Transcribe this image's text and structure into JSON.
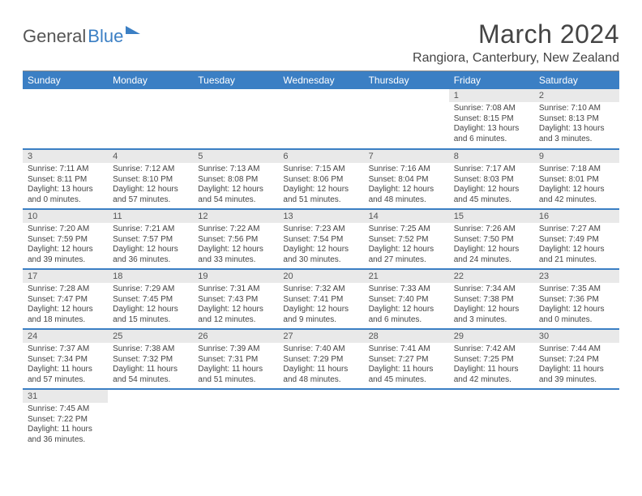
{
  "brand": {
    "a": "General",
    "b": "Blue"
  },
  "title": "March 2024",
  "location": "Rangiora, Canterbury, New Zealand",
  "colors": {
    "accent": "#3b7fc4",
    "daynum_bg": "#e9e9e9",
    "text": "#444444",
    "rule": "#888888"
  },
  "weekdays": [
    "Sunday",
    "Monday",
    "Tuesday",
    "Wednesday",
    "Thursday",
    "Friday",
    "Saturday"
  ],
  "weeks": [
    [
      null,
      null,
      null,
      null,
      null,
      {
        "n": "1",
        "sr": "Sunrise: 7:08 AM",
        "ss": "Sunset: 8:15 PM",
        "dl": "Daylight: 13 hours and 6 minutes."
      },
      {
        "n": "2",
        "sr": "Sunrise: 7:10 AM",
        "ss": "Sunset: 8:13 PM",
        "dl": "Daylight: 13 hours and 3 minutes."
      }
    ],
    [
      {
        "n": "3",
        "sr": "Sunrise: 7:11 AM",
        "ss": "Sunset: 8:11 PM",
        "dl": "Daylight: 13 hours and 0 minutes."
      },
      {
        "n": "4",
        "sr": "Sunrise: 7:12 AM",
        "ss": "Sunset: 8:10 PM",
        "dl": "Daylight: 12 hours and 57 minutes."
      },
      {
        "n": "5",
        "sr": "Sunrise: 7:13 AM",
        "ss": "Sunset: 8:08 PM",
        "dl": "Daylight: 12 hours and 54 minutes."
      },
      {
        "n": "6",
        "sr": "Sunrise: 7:15 AM",
        "ss": "Sunset: 8:06 PM",
        "dl": "Daylight: 12 hours and 51 minutes."
      },
      {
        "n": "7",
        "sr": "Sunrise: 7:16 AM",
        "ss": "Sunset: 8:04 PM",
        "dl": "Daylight: 12 hours and 48 minutes."
      },
      {
        "n": "8",
        "sr": "Sunrise: 7:17 AM",
        "ss": "Sunset: 8:03 PM",
        "dl": "Daylight: 12 hours and 45 minutes."
      },
      {
        "n": "9",
        "sr": "Sunrise: 7:18 AM",
        "ss": "Sunset: 8:01 PM",
        "dl": "Daylight: 12 hours and 42 minutes."
      }
    ],
    [
      {
        "n": "10",
        "sr": "Sunrise: 7:20 AM",
        "ss": "Sunset: 7:59 PM",
        "dl": "Daylight: 12 hours and 39 minutes."
      },
      {
        "n": "11",
        "sr": "Sunrise: 7:21 AM",
        "ss": "Sunset: 7:57 PM",
        "dl": "Daylight: 12 hours and 36 minutes."
      },
      {
        "n": "12",
        "sr": "Sunrise: 7:22 AM",
        "ss": "Sunset: 7:56 PM",
        "dl": "Daylight: 12 hours and 33 minutes."
      },
      {
        "n": "13",
        "sr": "Sunrise: 7:23 AM",
        "ss": "Sunset: 7:54 PM",
        "dl": "Daylight: 12 hours and 30 minutes."
      },
      {
        "n": "14",
        "sr": "Sunrise: 7:25 AM",
        "ss": "Sunset: 7:52 PM",
        "dl": "Daylight: 12 hours and 27 minutes."
      },
      {
        "n": "15",
        "sr": "Sunrise: 7:26 AM",
        "ss": "Sunset: 7:50 PM",
        "dl": "Daylight: 12 hours and 24 minutes."
      },
      {
        "n": "16",
        "sr": "Sunrise: 7:27 AM",
        "ss": "Sunset: 7:49 PM",
        "dl": "Daylight: 12 hours and 21 minutes."
      }
    ],
    [
      {
        "n": "17",
        "sr": "Sunrise: 7:28 AM",
        "ss": "Sunset: 7:47 PM",
        "dl": "Daylight: 12 hours and 18 minutes."
      },
      {
        "n": "18",
        "sr": "Sunrise: 7:29 AM",
        "ss": "Sunset: 7:45 PM",
        "dl": "Daylight: 12 hours and 15 minutes."
      },
      {
        "n": "19",
        "sr": "Sunrise: 7:31 AM",
        "ss": "Sunset: 7:43 PM",
        "dl": "Daylight: 12 hours and 12 minutes."
      },
      {
        "n": "20",
        "sr": "Sunrise: 7:32 AM",
        "ss": "Sunset: 7:41 PM",
        "dl": "Daylight: 12 hours and 9 minutes."
      },
      {
        "n": "21",
        "sr": "Sunrise: 7:33 AM",
        "ss": "Sunset: 7:40 PM",
        "dl": "Daylight: 12 hours and 6 minutes."
      },
      {
        "n": "22",
        "sr": "Sunrise: 7:34 AM",
        "ss": "Sunset: 7:38 PM",
        "dl": "Daylight: 12 hours and 3 minutes."
      },
      {
        "n": "23",
        "sr": "Sunrise: 7:35 AM",
        "ss": "Sunset: 7:36 PM",
        "dl": "Daylight: 12 hours and 0 minutes."
      }
    ],
    [
      {
        "n": "24",
        "sr": "Sunrise: 7:37 AM",
        "ss": "Sunset: 7:34 PM",
        "dl": "Daylight: 11 hours and 57 minutes."
      },
      {
        "n": "25",
        "sr": "Sunrise: 7:38 AM",
        "ss": "Sunset: 7:32 PM",
        "dl": "Daylight: 11 hours and 54 minutes."
      },
      {
        "n": "26",
        "sr": "Sunrise: 7:39 AM",
        "ss": "Sunset: 7:31 PM",
        "dl": "Daylight: 11 hours and 51 minutes."
      },
      {
        "n": "27",
        "sr": "Sunrise: 7:40 AM",
        "ss": "Sunset: 7:29 PM",
        "dl": "Daylight: 11 hours and 48 minutes."
      },
      {
        "n": "28",
        "sr": "Sunrise: 7:41 AM",
        "ss": "Sunset: 7:27 PM",
        "dl": "Daylight: 11 hours and 45 minutes."
      },
      {
        "n": "29",
        "sr": "Sunrise: 7:42 AM",
        "ss": "Sunset: 7:25 PM",
        "dl": "Daylight: 11 hours and 42 minutes."
      },
      {
        "n": "30",
        "sr": "Sunrise: 7:44 AM",
        "ss": "Sunset: 7:24 PM",
        "dl": "Daylight: 11 hours and 39 minutes."
      }
    ],
    [
      {
        "n": "31",
        "sr": "Sunrise: 7:45 AM",
        "ss": "Sunset: 7:22 PM",
        "dl": "Daylight: 11 hours and 36 minutes."
      },
      null,
      null,
      null,
      null,
      null,
      null
    ]
  ]
}
